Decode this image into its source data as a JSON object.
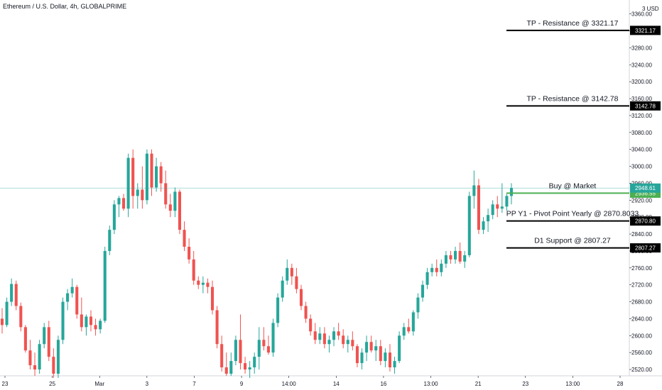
{
  "header": {
    "title": "Ethereum / U.S. Dollar, 4h, GLOBALPRIME"
  },
  "colors": {
    "up": "#26a69a",
    "down": "#ef5350",
    "level": "#000000",
    "buy": "#4caf50",
    "price": "#26a69a"
  },
  "chart_data": {
    "type": "candlestick",
    "currency": "USD",
    "y_unit_label": "3 USD",
    "ylim": [
      2505,
      3393
    ],
    "y_ticks": [
      3360,
      3320,
      3280,
      3240,
      3200,
      3160,
      3120,
      3080,
      3040,
      3000,
      2960,
      2920,
      2880,
      2840,
      2800,
      2760,
      2720,
      2680,
      2640,
      2600,
      2560,
      2520
    ],
    "x_ticks": [
      "23",
      "25",
      "Mar",
      "3",
      "7",
      "9",
      "14:00",
      "14",
      "16",
      "13:00",
      "21",
      "23",
      "13:00",
      "28"
    ],
    "annotations": [
      {
        "text": "TP - Resistance @ 3321.17",
        "price": 3321.17,
        "tag": "3321.17"
      },
      {
        "text": "TP - Resistance @ 3142.78",
        "price": 3142.78,
        "tag": "3142.78"
      },
      {
        "text": "Buy @ Market",
        "price": 2936.55,
        "tag": "2936.55"
      },
      {
        "text": "PP Y1 - Pivot Point Yearly @ 2870.8033",
        "price": 2870.8,
        "tag": "2870.80"
      },
      {
        "text": "D1 Support @ 2807.27",
        "price": 2807.27,
        "tag": "2807.27"
      }
    ],
    "last_price": {
      "value": 2948.61,
      "tag": "2948.61"
    },
    "ohlc": [
      [
        2640,
        2665,
        2605,
        2625
      ],
      [
        2625,
        2690,
        2620,
        2680
      ],
      [
        2680,
        2735,
        2670,
        2722
      ],
      [
        2722,
        2730,
        2660,
        2670
      ],
      [
        2670,
        2678,
        2610,
        2620
      ],
      [
        2620,
        2625,
        2560,
        2565
      ],
      [
        2565,
        2590,
        2520,
        2530
      ],
      [
        2530,
        2560,
        2505,
        2520
      ],
      [
        2520,
        2590,
        2510,
        2580
      ],
      [
        2580,
        2630,
        2570,
        2620
      ],
      [
        2620,
        2635,
        2540,
        2550
      ],
      [
        2550,
        2570,
        2500,
        2510
      ],
      [
        2510,
        2600,
        2500,
        2590
      ],
      [
        2590,
        2690,
        2580,
        2680
      ],
      [
        2680,
        2710,
        2660,
        2700
      ],
      [
        2700,
        2735,
        2690,
        2715
      ],
      [
        2715,
        2720,
        2640,
        2650
      ],
      [
        2650,
        2690,
        2610,
        2620
      ],
      [
        2620,
        2650,
        2600,
        2645
      ],
      [
        2645,
        2660,
        2610,
        2625
      ],
      [
        2625,
        2640,
        2600,
        2615
      ],
      [
        2615,
        2640,
        2605,
        2635
      ],
      [
        2635,
        2810,
        2630,
        2800
      ],
      [
        2800,
        2860,
        2790,
        2850
      ],
      [
        2850,
        2920,
        2840,
        2910
      ],
      [
        2910,
        2930,
        2880,
        2925
      ],
      [
        2925,
        2935,
        2895,
        2900
      ],
      [
        2900,
        3030,
        2880,
        3020
      ],
      [
        3020,
        3040,
        2900,
        2930
      ],
      [
        2930,
        2960,
        2900,
        2945
      ],
      [
        2945,
        3000,
        2900,
        2920
      ],
      [
        2920,
        3040,
        2910,
        3030
      ],
      [
        3030,
        3040,
        2930,
        2950
      ],
      [
        2950,
        3020,
        2940,
        3000
      ],
      [
        3000,
        3010,
        2940,
        2960
      ],
      [
        2960,
        2990,
        2900,
        2910
      ],
      [
        2910,
        2935,
        2880,
        2895
      ],
      [
        2895,
        2950,
        2880,
        2940
      ],
      [
        2940,
        2945,
        2840,
        2850
      ],
      [
        2850,
        2870,
        2800,
        2810
      ],
      [
        2810,
        2830,
        2770,
        2780
      ],
      [
        2780,
        2800,
        2720,
        2730
      ],
      [
        2730,
        2740,
        2710,
        2720
      ],
      [
        2720,
        2740,
        2700,
        2725
      ],
      [
        2725,
        2735,
        2700,
        2715
      ],
      [
        2715,
        2730,
        2650,
        2660
      ],
      [
        2660,
        2670,
        2570,
        2580
      ],
      [
        2580,
        2600,
        2515,
        2525
      ],
      [
        2525,
        2560,
        2505,
        2510
      ],
      [
        2510,
        2560,
        2505,
        2540
      ],
      [
        2540,
        2600,
        2530,
        2590
      ],
      [
        2590,
        2650,
        2520,
        2535
      ],
      [
        2535,
        2550,
        2510,
        2520
      ],
      [
        2520,
        2540,
        2500,
        2525
      ],
      [
        2525,
        2560,
        2510,
        2550
      ],
      [
        2550,
        2620,
        2520,
        2590
      ],
      [
        2590,
        2620,
        2565,
        2575
      ],
      [
        2575,
        2600,
        2555,
        2560
      ],
      [
        2560,
        2640,
        2550,
        2630
      ],
      [
        2630,
        2700,
        2620,
        2690
      ],
      [
        2690,
        2740,
        2680,
        2730
      ],
      [
        2730,
        2780,
        2720,
        2760
      ],
      [
        2760,
        2770,
        2720,
        2740
      ],
      [
        2740,
        2760,
        2700,
        2710
      ],
      [
        2710,
        2720,
        2660,
        2670
      ],
      [
        2670,
        2680,
        2630,
        2640
      ],
      [
        2640,
        2650,
        2600,
        2610
      ],
      [
        2610,
        2630,
        2580,
        2590
      ],
      [
        2590,
        2620,
        2580,
        2605
      ],
      [
        2605,
        2620,
        2570,
        2580
      ],
      [
        2580,
        2600,
        2560,
        2590
      ],
      [
        2590,
        2620,
        2575,
        2610
      ],
      [
        2610,
        2630,
        2590,
        2600
      ],
      [
        2600,
        2615,
        2570,
        2580
      ],
      [
        2580,
        2600,
        2560,
        2590
      ],
      [
        2590,
        2610,
        2565,
        2575
      ],
      [
        2575,
        2580,
        2525,
        2535
      ],
      [
        2535,
        2570,
        2520,
        2560
      ],
      [
        2560,
        2600,
        2540,
        2585
      ],
      [
        2585,
        2600,
        2560,
        2565
      ],
      [
        2565,
        2590,
        2540,
        2575
      ],
      [
        2575,
        2590,
        2530,
        2540
      ],
      [
        2540,
        2570,
        2525,
        2560
      ],
      [
        2560,
        2580,
        2515,
        2525
      ],
      [
        2525,
        2550,
        2510,
        2540
      ],
      [
        2540,
        2610,
        2535,
        2600
      ],
      [
        2600,
        2630,
        2590,
        2620
      ],
      [
        2620,
        2640,
        2605,
        2610
      ],
      [
        2610,
        2660,
        2600,
        2655
      ],
      [
        2655,
        2700,
        2640,
        2690
      ],
      [
        2690,
        2730,
        2680,
        2720
      ],
      [
        2720,
        2760,
        2710,
        2750
      ],
      [
        2750,
        2770,
        2740,
        2760
      ],
      [
        2760,
        2780,
        2740,
        2750
      ],
      [
        2750,
        2780,
        2740,
        2770
      ],
      [
        2770,
        2800,
        2760,
        2790
      ],
      [
        2790,
        2800,
        2770,
        2780
      ],
      [
        2780,
        2810,
        2770,
        2800
      ],
      [
        2800,
        2820,
        2770,
        2775
      ],
      [
        2775,
        2800,
        2760,
        2790
      ],
      [
        2790,
        2940,
        2785,
        2930
      ],
      [
        2930,
        2990,
        2900,
        2955
      ],
      [
        2955,
        2970,
        2840,
        2850
      ],
      [
        2850,
        2880,
        2840,
        2870
      ],
      [
        2870,
        2900,
        2845,
        2885
      ],
      [
        2885,
        2920,
        2875,
        2910
      ],
      [
        2910,
        2930,
        2880,
        2900
      ],
      [
        2900,
        2960,
        2890,
        2905
      ],
      [
        2905,
        2935,
        2895,
        2930
      ],
      [
        2930,
        2960,
        2910,
        2948.61
      ]
    ]
  }
}
